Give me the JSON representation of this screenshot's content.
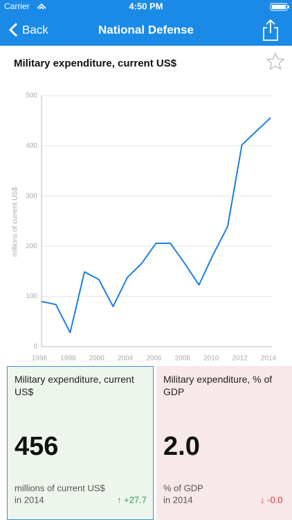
{
  "status": {
    "carrier": "Carrier",
    "time": "4:50 PM"
  },
  "nav": {
    "back": "Back",
    "title": "National Defense"
  },
  "chart_data": {
    "type": "line",
    "title": "Military expenditure, current US$",
    "y_label": "millions of current US$",
    "categories": [
      "1996",
      null,
      "1998",
      null,
      "2000",
      null,
      "2004",
      null,
      "2006",
      null,
      "2008",
      null,
      "2010",
      null,
      "2012",
      null,
      "2014"
    ],
    "values": [
      90,
      84,
      28,
      149,
      134,
      80,
      138,
      166,
      206,
      206,
      166,
      123,
      184,
      239,
      402,
      429,
      456
    ],
    "color": "#1a7fe0",
    "ylim": [
      0,
      500
    ],
    "yticks": [
      0,
      100,
      200,
      300,
      400,
      500
    ],
    "grid": true
  },
  "cards": [
    {
      "title": "Military expenditure, current US$",
      "value": "456",
      "unit": "millions of current US$",
      "year": "in 2014",
      "change": "↑ +27.7"
    },
    {
      "title": "Military expenditure, % of GDP",
      "value": "2.0",
      "unit": "% of GDP",
      "year": "in 2014",
      "change": "↓ -0.0"
    }
  ]
}
